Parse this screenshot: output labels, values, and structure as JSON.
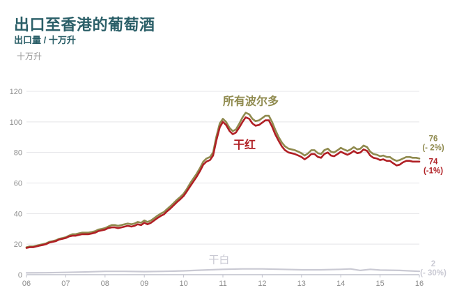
{
  "header": {
    "title": "出口至香港的葡萄酒",
    "subtitle": "出口量 / 十万升",
    "unit_label": "十万升"
  },
  "colors": {
    "title_teal": "#2b5f68",
    "axis_text": "#8c8c8c",
    "gridline": "#e4e4e8",
    "axis_line": "#bfc0cc",
    "all_bordeaux": "#8f8a4e",
    "dry_red": "#b01f24",
    "dry_white": "#c9c9d3",
    "background": "#ffffff"
  },
  "chart_data": {
    "type": "line",
    "title": "出口至香港的葡萄酒",
    "subtitle": "出口量 / 十万升",
    "ylabel": "十万升",
    "xlabel": "",
    "x_ticks": [
      "06",
      "07",
      "08",
      "09",
      "10",
      "11",
      "12",
      "13",
      "14",
      "15",
      "16"
    ],
    "x_range": [
      6,
      16
    ],
    "y_ticks": [
      0,
      20,
      40,
      60,
      80,
      100,
      120
    ],
    "ylim": [
      0,
      120
    ],
    "grid": true,
    "legend_position": "inline-annotations",
    "series": [
      {
        "id": "all-bordeaux",
        "name": "所有波尔多",
        "color": "#8f8a4e",
        "label_anchor": {
          "x": 11.71,
          "y": 111
        },
        "end_label": {
          "value": "76",
          "change": "(- 2%)",
          "anchor_y_value": 86.5
        },
        "points": [
          [
            6.0,
            18
          ],
          [
            6.08,
            18.5
          ],
          [
            6.17,
            18.5
          ],
          [
            6.25,
            19
          ],
          [
            6.33,
            19.5
          ],
          [
            6.42,
            20
          ],
          [
            6.5,
            20.5
          ],
          [
            6.58,
            21.5
          ],
          [
            6.67,
            22
          ],
          [
            6.75,
            22.5
          ],
          [
            6.83,
            23.5
          ],
          [
            6.92,
            24
          ],
          [
            7.0,
            24.5
          ],
          [
            7.08,
            25.5
          ],
          [
            7.17,
            26.5
          ],
          [
            7.25,
            26.5
          ],
          [
            7.33,
            27
          ],
          [
            7.42,
            27.5
          ],
          [
            7.5,
            27.5
          ],
          [
            7.58,
            27.5
          ],
          [
            7.67,
            28
          ],
          [
            7.75,
            28.5
          ],
          [
            7.83,
            29.5
          ],
          [
            7.92,
            30
          ],
          [
            8.0,
            30.5
          ],
          [
            8.08,
            31.5
          ],
          [
            8.17,
            32.5
          ],
          [
            8.25,
            32.5
          ],
          [
            8.33,
            32
          ],
          [
            8.42,
            32.5
          ],
          [
            8.5,
            33
          ],
          [
            8.58,
            33.5
          ],
          [
            8.67,
            33
          ],
          [
            8.75,
            33.5
          ],
          [
            8.83,
            34.5
          ],
          [
            8.92,
            34
          ],
          [
            9.0,
            35.5
          ],
          [
            9.08,
            34.5
          ],
          [
            9.17,
            35.5
          ],
          [
            9.25,
            37
          ],
          [
            9.33,
            38.5
          ],
          [
            9.42,
            40
          ],
          [
            9.5,
            41
          ],
          [
            9.58,
            43
          ],
          [
            9.67,
            45
          ],
          [
            9.75,
            47
          ],
          [
            9.83,
            49
          ],
          [
            9.92,
            51
          ],
          [
            10.0,
            53
          ],
          [
            10.08,
            56
          ],
          [
            10.17,
            60
          ],
          [
            10.25,
            63
          ],
          [
            10.33,
            66
          ],
          [
            10.42,
            70
          ],
          [
            10.5,
            74
          ],
          [
            10.58,
            76
          ],
          [
            10.67,
            77
          ],
          [
            10.75,
            80
          ],
          [
            10.83,
            90
          ],
          [
            10.92,
            99
          ],
          [
            11.0,
            102
          ],
          [
            11.08,
            100
          ],
          [
            11.17,
            96
          ],
          [
            11.25,
            94
          ],
          [
            11.33,
            95
          ],
          [
            11.42,
            99
          ],
          [
            11.5,
            103
          ],
          [
            11.58,
            106
          ],
          [
            11.67,
            105
          ],
          [
            11.75,
            102
          ],
          [
            11.83,
            100.5
          ],
          [
            11.92,
            101
          ],
          [
            12.0,
            102.5
          ],
          [
            12.08,
            104
          ],
          [
            12.17,
            104
          ],
          [
            12.25,
            100
          ],
          [
            12.33,
            95
          ],
          [
            12.42,
            90
          ],
          [
            12.5,
            86.5
          ],
          [
            12.58,
            84
          ],
          [
            12.67,
            82.5
          ],
          [
            12.75,
            82
          ],
          [
            12.83,
            81.5
          ],
          [
            12.92,
            80.5
          ],
          [
            13.0,
            79.5
          ],
          [
            13.08,
            78
          ],
          [
            13.17,
            79.5
          ],
          [
            13.25,
            81.5
          ],
          [
            13.33,
            81.5
          ],
          [
            13.42,
            79.5
          ],
          [
            13.5,
            79
          ],
          [
            13.58,
            81.5
          ],
          [
            13.67,
            82.5
          ],
          [
            13.75,
            80.5
          ],
          [
            13.83,
            80
          ],
          [
            13.92,
            81.5
          ],
          [
            14.0,
            83
          ],
          [
            14.08,
            82
          ],
          [
            14.17,
            81
          ],
          [
            14.25,
            82
          ],
          [
            14.33,
            83.5
          ],
          [
            14.42,
            82
          ],
          [
            14.5,
            82.5
          ],
          [
            14.58,
            84.5
          ],
          [
            14.67,
            83.5
          ],
          [
            14.75,
            80.5
          ],
          [
            14.83,
            79
          ],
          [
            14.92,
            78.5
          ],
          [
            15.0,
            77.5
          ],
          [
            15.08,
            78
          ],
          [
            15.17,
            77
          ],
          [
            15.25,
            77
          ],
          [
            15.33,
            75.5
          ],
          [
            15.42,
            74.5
          ],
          [
            15.5,
            75
          ],
          [
            15.58,
            76
          ],
          [
            15.67,
            77
          ],
          [
            15.75,
            77
          ],
          [
            15.83,
            76.5
          ],
          [
            15.92,
            76.5
          ],
          [
            16.0,
            76
          ]
        ]
      },
      {
        "id": "dry-red",
        "name": "干红",
        "color": "#b01f24",
        "label_anchor": {
          "x": 11.55,
          "y": 82.5
        },
        "end_label": {
          "value": "74",
          "change": "(-1%)",
          "anchor_y_value": 71.5
        },
        "points": [
          [
            6.0,
            17.5
          ],
          [
            6.08,
            18
          ],
          [
            6.17,
            18
          ],
          [
            6.25,
            18.5
          ],
          [
            6.33,
            19
          ],
          [
            6.42,
            19.5
          ],
          [
            6.5,
            20
          ],
          [
            6.58,
            21
          ],
          [
            6.67,
            21.5
          ],
          [
            6.75,
            22
          ],
          [
            6.83,
            23
          ],
          [
            6.92,
            23.5
          ],
          [
            7.0,
            24
          ],
          [
            7.08,
            25
          ],
          [
            7.17,
            25.5
          ],
          [
            7.25,
            25.5
          ],
          [
            7.33,
            26
          ],
          [
            7.42,
            26.5
          ],
          [
            7.5,
            26.5
          ],
          [
            7.58,
            26.5
          ],
          [
            7.67,
            27
          ],
          [
            7.75,
            27.5
          ],
          [
            7.83,
            28.5
          ],
          [
            7.92,
            29
          ],
          [
            8.0,
            29.5
          ],
          [
            8.08,
            30.5
          ],
          [
            8.17,
            31
          ],
          [
            8.25,
            31
          ],
          [
            8.33,
            30.5
          ],
          [
            8.42,
            31
          ],
          [
            8.5,
            31.5
          ],
          [
            8.58,
            32
          ],
          [
            8.67,
            31.5
          ],
          [
            8.75,
            32
          ],
          [
            8.83,
            33
          ],
          [
            8.92,
            32.5
          ],
          [
            9.0,
            34
          ],
          [
            9.08,
            33
          ],
          [
            9.17,
            34
          ],
          [
            9.25,
            35.5
          ],
          [
            9.33,
            37
          ],
          [
            9.42,
            38.5
          ],
          [
            9.5,
            39.5
          ],
          [
            9.58,
            41.5
          ],
          [
            9.67,
            43.5
          ],
          [
            9.75,
            45.5
          ],
          [
            9.83,
            47.5
          ],
          [
            9.92,
            49.5
          ],
          [
            10.0,
            51.5
          ],
          [
            10.08,
            54.5
          ],
          [
            10.17,
            58
          ],
          [
            10.25,
            61
          ],
          [
            10.33,
            64
          ],
          [
            10.42,
            68
          ],
          [
            10.5,
            72
          ],
          [
            10.58,
            74
          ],
          [
            10.67,
            75
          ],
          [
            10.75,
            78
          ],
          [
            10.83,
            87.5
          ],
          [
            10.92,
            96.5
          ],
          [
            11.0,
            100
          ],
          [
            11.08,
            98
          ],
          [
            11.17,
            94
          ],
          [
            11.25,
            92
          ],
          [
            11.33,
            93
          ],
          [
            11.42,
            96.5
          ],
          [
            11.5,
            100
          ],
          [
            11.58,
            103
          ],
          [
            11.67,
            102
          ],
          [
            11.75,
            99
          ],
          [
            11.83,
            97.5
          ],
          [
            11.92,
            98
          ],
          [
            12.0,
            99.5
          ],
          [
            12.08,
            101
          ],
          [
            12.17,
            101
          ],
          [
            12.25,
            97
          ],
          [
            12.33,
            92
          ],
          [
            12.42,
            87.5
          ],
          [
            12.5,
            84
          ],
          [
            12.58,
            81.5
          ],
          [
            12.67,
            80
          ],
          [
            12.75,
            79.5
          ],
          [
            12.83,
            79
          ],
          [
            12.92,
            78
          ],
          [
            13.0,
            77
          ],
          [
            13.08,
            75.5
          ],
          [
            13.17,
            77
          ],
          [
            13.25,
            79
          ],
          [
            13.33,
            79
          ],
          [
            13.42,
            77
          ],
          [
            13.5,
            76.5
          ],
          [
            13.58,
            79
          ],
          [
            13.67,
            80
          ],
          [
            13.75,
            78
          ],
          [
            13.83,
            77.5
          ],
          [
            13.92,
            79
          ],
          [
            14.0,
            80.5
          ],
          [
            14.08,
            79.5
          ],
          [
            14.17,
            78.5
          ],
          [
            14.25,
            79.5
          ],
          [
            14.33,
            81
          ],
          [
            14.42,
            79.5
          ],
          [
            14.5,
            80
          ],
          [
            14.58,
            82
          ],
          [
            14.67,
            81
          ],
          [
            14.75,
            78
          ],
          [
            14.83,
            76.5
          ],
          [
            14.92,
            76
          ],
          [
            15.0,
            75
          ],
          [
            15.08,
            75.5
          ],
          [
            15.17,
            74.5
          ],
          [
            15.25,
            74.5
          ],
          [
            15.33,
            73
          ],
          [
            15.42,
            71.5
          ],
          [
            15.5,
            72
          ],
          [
            15.58,
            73.5
          ],
          [
            15.67,
            74.5
          ],
          [
            15.75,
            74.5
          ],
          [
            15.83,
            74
          ],
          [
            15.92,
            74
          ],
          [
            16.0,
            74
          ]
        ]
      },
      {
        "id": "dry-white",
        "name": "干白",
        "color": "#c9c9d3",
        "label_anchor": {
          "x": 10.9,
          "y": 7.5
        },
        "end_label": {
          "value": "2",
          "change": "(- 30%)",
          "anchor_y_value": 4.5
        },
        "points": [
          [
            6.0,
            1.2
          ],
          [
            6.5,
            1.3
          ],
          [
            7.0,
            1.5
          ],
          [
            7.5,
            1.8
          ],
          [
            8.0,
            2.2
          ],
          [
            8.5,
            2.2
          ],
          [
            9.0,
            2.0
          ],
          [
            9.5,
            2.2
          ],
          [
            10.0,
            2.5
          ],
          [
            10.5,
            3.0
          ],
          [
            11.0,
            3.5
          ],
          [
            11.5,
            3.8
          ],
          [
            12.0,
            3.8
          ],
          [
            12.5,
            3.5
          ],
          [
            13.0,
            3.2
          ],
          [
            13.5,
            3.2
          ],
          [
            14.0,
            3.5
          ],
          [
            14.25,
            3.8
          ],
          [
            14.5,
            2.8
          ],
          [
            14.75,
            3.5
          ],
          [
            15.0,
            3.0
          ],
          [
            15.5,
            2.8
          ],
          [
            16.0,
            2.2
          ]
        ]
      }
    ]
  }
}
